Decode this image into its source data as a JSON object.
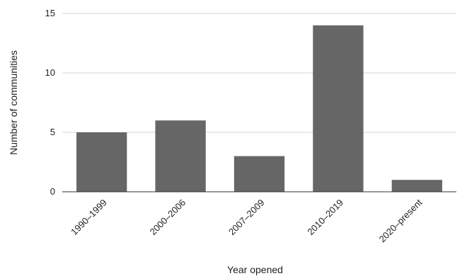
{
  "chart_data": {
    "type": "bar",
    "categories": [
      "1990–1999",
      "2000–2006",
      "2007–2009",
      "2010–2019",
      "2020–present"
    ],
    "values": [
      5,
      6,
      3,
      14,
      1
    ],
    "title": "",
    "xlabel": "Year opened",
    "ylabel": "Number of communities",
    "ylim": [
      0,
      15
    ],
    "yticks": [
      0,
      5,
      10,
      15
    ],
    "grid": true,
    "legend": "none",
    "bar_color": "#666666"
  }
}
